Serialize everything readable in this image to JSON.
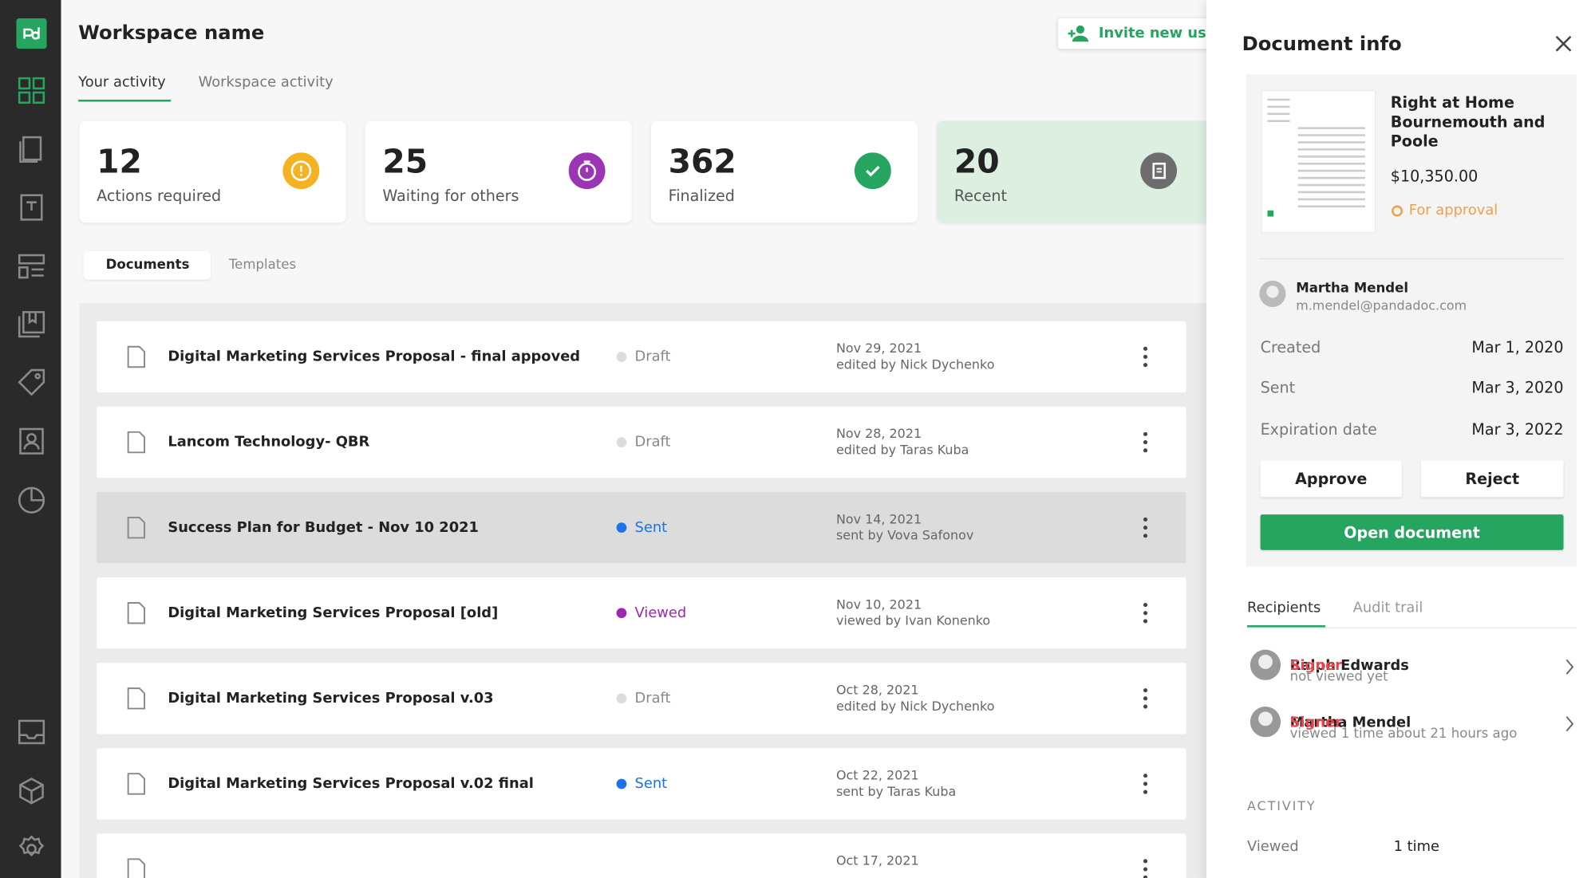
{
  "header": {
    "title": "Workspace name",
    "invite_button": "Invite new use",
    "tabs": [
      "Your activity",
      "Workspace activity"
    ]
  },
  "stats": [
    {
      "number": "12",
      "label": "Actions required"
    },
    {
      "number": "25",
      "label": "Waiting for others"
    },
    {
      "number": "362",
      "label": "Finalized"
    },
    {
      "number": "20",
      "label": "Recent"
    }
  ],
  "subtabs": [
    "Documents",
    "Templates"
  ],
  "documents": [
    {
      "title": "Digital Marketing Services Proposal - final appoved",
      "status": "Draft",
      "date": "Nov 29, 2021",
      "by": "edited by Nick Dychenko"
    },
    {
      "title": "Lancom Technology- QBR",
      "status": "Draft",
      "date": "Nov 28, 2021",
      "by": "edited by Taras Kuba"
    },
    {
      "title": "Success Plan for Budget - Nov 10 2021",
      "status": "Sent",
      "date": "Nov 14, 2021",
      "by": "sent by Vova Safonov"
    },
    {
      "title": "Digital Marketing Services Proposal [old]",
      "status": "Viewed",
      "date": "Nov 10, 2021",
      "by": "viewed by Ivan Konenko"
    },
    {
      "title": "Digital Marketing Services Proposal v.03",
      "status": "Draft",
      "date": "Oct 28, 2021",
      "by": "edited by Nick Dychenko"
    },
    {
      "title": "Digital Marketing Services Proposal v.02 final",
      "status": "Sent",
      "date": "Oct 22, 2021",
      "by": "sent by Taras Kuba"
    },
    {
      "date": "Oct 17, 2021"
    }
  ],
  "panel": {
    "title": "Document info",
    "doc_title": "Right at Home Bournemouth and Poole",
    "price": "$10,350.00",
    "status": "For approval",
    "owner": {
      "name": "Martha Mendel",
      "email": "m.mendel@pandadoc.com"
    },
    "details": [
      {
        "label": "Created",
        "value": "Mar 1, 2020"
      },
      {
        "label": "Sent",
        "value": "Mar 3, 2020"
      },
      {
        "label": "Expiration date",
        "value": "Mar 3, 2022"
      }
    ],
    "buttons": {
      "approve": "Approve",
      "reject": "Reject",
      "open": "Open document"
    },
    "tabs": [
      "Recipients",
      "Audit trail"
    ],
    "recipients": [
      {
        "name": "Ralph Edwards",
        "role": "Signer",
        "status": "not viewed yet"
      },
      {
        "name": "Martha Mendel",
        "role": "Signer",
        "status": "viewed 1 time about 21 hours ago"
      }
    ],
    "activity_title": "ACTIVITY",
    "activity": [
      {
        "label": "Viewed",
        "value": "1 time"
      }
    ]
  }
}
